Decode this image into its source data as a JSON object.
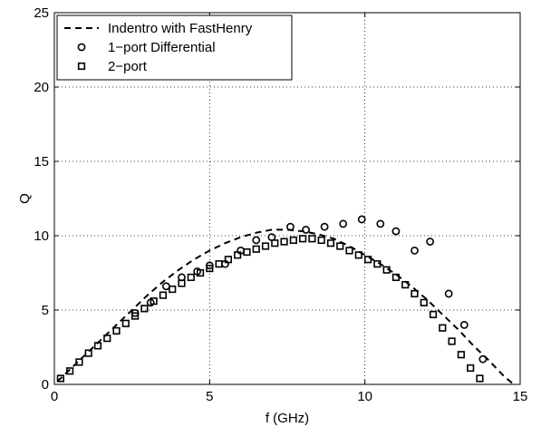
{
  "chart_data": {
    "type": "line",
    "xlabel": "f (GHz)",
    "ylabel": "Q",
    "xlim": [
      0,
      15
    ],
    "ylim": [
      0,
      25
    ],
    "x_ticks": [
      0,
      5,
      10,
      15
    ],
    "y_ticks": [
      0,
      5,
      10,
      15,
      20,
      25
    ],
    "grid": true,
    "legend_position": "top-left",
    "series": [
      {
        "name": "Indentro with FastHenry",
        "style": "dashed-line",
        "color": "#000000",
        "x": [
          0.1,
          0.5,
          1,
          1.5,
          2,
          2.5,
          3,
          3.5,
          4,
          4.5,
          5,
          5.5,
          6,
          6.5,
          7,
          7.5,
          8,
          8.5,
          9,
          9.5,
          10,
          10.5,
          11,
          11.5,
          12,
          12.5,
          13,
          13.5,
          14,
          14.5,
          14.8
        ],
        "y": [
          0.2,
          1.0,
          2.0,
          3.0,
          4.0,
          5.0,
          6.0,
          6.9,
          7.7,
          8.4,
          9.0,
          9.5,
          9.9,
          10.2,
          10.4,
          10.4,
          10.3,
          10.1,
          9.8,
          9.3,
          8.7,
          8.1,
          7.4,
          6.6,
          5.7,
          4.7,
          3.7,
          2.6,
          1.6,
          0.5,
          0.0
        ]
      },
      {
        "name": "1−port Differential",
        "style": "circle-markers",
        "color": "#000000",
        "x": [
          2.6,
          3.1,
          3.6,
          4.1,
          4.6,
          5.0,
          5.5,
          6.0,
          6.5,
          7.0,
          7.6,
          8.1,
          8.7,
          9.3,
          9.9,
          10.5,
          11.0,
          11.6,
          12.1,
          12.7,
          13.2,
          13.8
        ],
        "y": [
          4.8,
          5.5,
          6.6,
          7.2,
          7.6,
          8.0,
          8.1,
          9.0,
          9.7,
          9.9,
          10.6,
          10.4,
          10.6,
          10.8,
          11.1,
          10.8,
          10.3,
          9.0,
          9.6,
          6.1,
          4.0,
          1.7
        ]
      },
      {
        "name": "2−port",
        "style": "square-markers",
        "color": "#000000",
        "x": [
          0.2,
          0.5,
          0.8,
          1.1,
          1.4,
          1.7,
          2.0,
          2.3,
          2.6,
          2.9,
          3.2,
          3.5,
          3.8,
          4.1,
          4.4,
          4.7,
          5.0,
          5.3,
          5.6,
          5.9,
          6.2,
          6.5,
          6.8,
          7.1,
          7.4,
          7.7,
          8.0,
          8.3,
          8.6,
          8.9,
          9.2,
          9.5,
          9.8,
          10.1,
          10.4,
          10.7,
          11.0,
          11.3,
          11.6,
          11.9,
          12.2,
          12.5,
          12.8,
          13.1,
          13.4,
          13.7
        ],
        "y": [
          0.4,
          0.9,
          1.5,
          2.1,
          2.6,
          3.1,
          3.6,
          4.1,
          4.6,
          5.1,
          5.6,
          6.0,
          6.4,
          6.8,
          7.2,
          7.5,
          7.8,
          8.1,
          8.4,
          8.7,
          8.9,
          9.1,
          9.3,
          9.5,
          9.6,
          9.7,
          9.8,
          9.8,
          9.7,
          9.5,
          9.3,
          9.0,
          8.7,
          8.4,
          8.1,
          7.7,
          7.2,
          6.7,
          6.1,
          5.5,
          4.7,
          3.8,
          2.9,
          2.0,
          1.1,
          0.4
        ]
      }
    ]
  }
}
